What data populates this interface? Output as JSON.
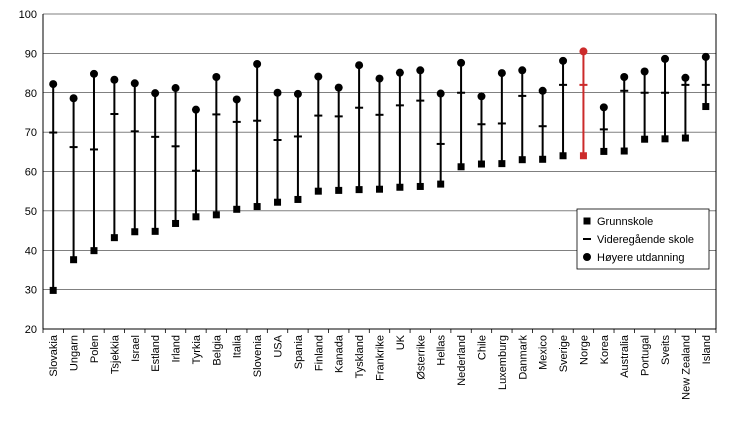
{
  "chart_data": {
    "type": "scatter",
    "title": "",
    "xlabel": "",
    "ylabel": "",
    "ylim": [
      20,
      100
    ],
    "yticks": [
      20,
      30,
      40,
      50,
      60,
      70,
      80,
      90,
      100
    ],
    "grid": "horizontal",
    "legend_position": "bottom-right",
    "colors": {
      "default": "#000000",
      "highlight": "#cc2a2a"
    },
    "highlight_category": "Norge",
    "categories": [
      "Slovakia",
      "Ungarn",
      "Polen",
      "Tsjekkia",
      "Israel",
      "Estland",
      "Irland",
      "Tyrkia",
      "Belgia",
      "Italia",
      "Slovenia",
      "USA",
      "Spania",
      "Finland",
      "Kanada",
      "Tyskland",
      "Frankrike",
      "UK",
      "Østerrike",
      "Hellas",
      "Nederland",
      "Chile",
      "Luxemburg",
      "Danmark",
      "Mexico",
      "Sverige",
      "Norge",
      "Korea",
      "Australia",
      "Portugal",
      "Sveits",
      "New Zealand",
      "Island"
    ],
    "series": [
      {
        "name": "Grunnskole",
        "marker": "square",
        "values": [
          29.8,
          37.6,
          39.9,
          43.2,
          44.7,
          44.8,
          46.8,
          48.5,
          49,
          50.4,
          51.1,
          52.2,
          52.9,
          55,
          55.2,
          55.4,
          55.5,
          56,
          56.2,
          56.8,
          61.2,
          61.9,
          62,
          63,
          63.1,
          64,
          64,
          65.1,
          65.2,
          68.2,
          68.3,
          68.5,
          76.5
        ]
      },
      {
        "name": "Videregående skole",
        "marker": "dash",
        "values": [
          69.9,
          66.2,
          65.6,
          74.6,
          70.2,
          68.8,
          66.4,
          60.2,
          74.5,
          72.6,
          72.9,
          68,
          68.9,
          74.2,
          74,
          76.2,
          74.4,
          76.8,
          78,
          67,
          80,
          72,
          72.2,
          79.2,
          71.5,
          82,
          82,
          70.7,
          80.5,
          80,
          80,
          82,
          82
        ]
      },
      {
        "name": "Høyere utdanning",
        "marker": "circle",
        "values": [
          82.2,
          78.6,
          84.8,
          83.3,
          82.4,
          79.9,
          81.2,
          75.7,
          84,
          78.3,
          87.3,
          80,
          79.7,
          84.1,
          81.3,
          87,
          83.6,
          85.1,
          85.7,
          79.8,
          87.6,
          79.1,
          85,
          85.7,
          80.5,
          88.1,
          90.5,
          76.3,
          84,
          85.4,
          88.6,
          83.8,
          89.1
        ]
      }
    ]
  }
}
